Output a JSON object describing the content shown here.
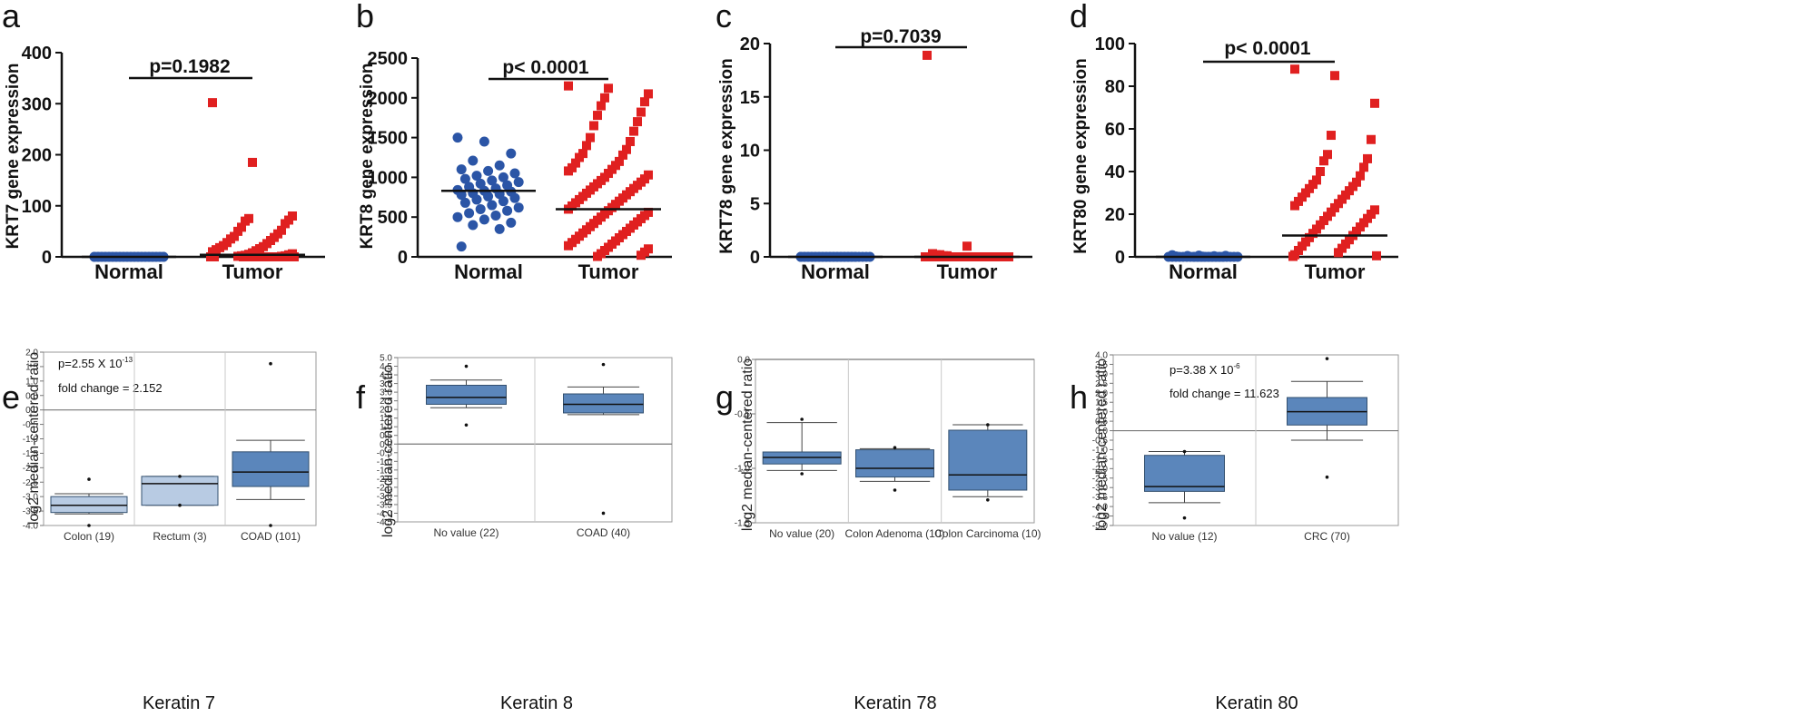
{
  "figure": {
    "scatter_panels": [
      {
        "letter": "a",
        "ylabel": "KRT7 gene expression",
        "pvalue": "p=0.1982"
      },
      {
        "letter": "b",
        "ylabel": "KRT8 gene expression",
        "pvalue": "p< 0.0001"
      },
      {
        "letter": "c",
        "ylabel": "KRT78 gene expression",
        "pvalue": "p=0.7039"
      },
      {
        "letter": "d",
        "ylabel": "KRT80 gene expression",
        "pvalue": "p< 0.0001"
      }
    ],
    "box_panels": [
      {
        "letter": "e",
        "title": "Keratin 7",
        "ylabel": "log2 median-centered ratio",
        "p_prefix": "p=2.55 X 10",
        "p_exp": "-13",
        "fold_change": "fold change = 2.152"
      },
      {
        "letter": "f",
        "title": "Keratin 8",
        "ylabel": "log2 median-centered ratio"
      },
      {
        "letter": "g",
        "title": "Keratin 78",
        "ylabel": "log2 median-centered ratio"
      },
      {
        "letter": "h",
        "title": "Keratin 80",
        "ylabel": "log2 median-centered ratio",
        "p_prefix": "p=3.38 X 10",
        "p_exp": "-6",
        "fold_change": "fold change = 11.623"
      }
    ]
  },
  "chart_data": [
    {
      "type": "scatter",
      "panel": "a",
      "ylabel": "KRT7 gene expression",
      "ylim": [
        0,
        400
      ],
      "yticks": [
        0,
        100,
        200,
        300,
        400
      ],
      "categories": [
        "Normal",
        "Tumor"
      ],
      "normal": {
        "values": [
          0,
          0,
          0,
          0,
          0,
          0,
          0,
          0,
          0,
          0,
          0,
          0,
          0,
          0,
          0,
          0,
          0,
          0,
          0,
          0,
          0,
          0,
          0,
          0,
          0,
          0,
          0,
          0,
          0,
          0,
          0,
          0,
          0,
          0,
          0,
          0,
          0,
          0,
          0,
          0
        ],
        "mean": 0
      },
      "tumor": {
        "values": [
          302,
          185,
          80,
          75,
          72,
          70,
          65,
          58,
          52,
          50,
          45,
          40,
          38,
          35,
          32,
          28,
          26,
          22,
          20,
          18,
          16,
          14,
          12,
          10,
          8,
          6,
          5,
          4,
          3,
          2,
          2,
          1,
          1,
          0,
          0,
          0,
          0,
          0,
          0,
          0,
          0,
          0,
          0,
          0,
          0,
          0,
          0,
          0,
          0,
          0
        ],
        "mean": 4
      },
      "pvalue": "p=0.1982"
    },
    {
      "type": "scatter",
      "panel": "b",
      "ylabel": "KRT8 gene expression",
      "ylim": [
        0,
        2500
      ],
      "yticks": [
        0,
        500,
        1000,
        1500,
        2000,
        2500
      ],
      "categories": [
        "Normal",
        "Tumor"
      ],
      "normal": {
        "values": [
          1500,
          1450,
          1300,
          1210,
          1150,
          1100,
          1080,
          1050,
          1020,
          1000,
          980,
          960,
          940,
          920,
          900,
          880,
          860,
          840,
          830,
          820,
          800,
          790,
          780,
          760,
          740,
          720,
          700,
          680,
          650,
          620,
          600,
          580,
          550,
          520,
          500,
          470,
          430,
          400,
          350,
          130
        ],
        "mean": 830
      },
      "tumor": {
        "values": [
          2150,
          2120,
          2050,
          2000,
          1950,
          1900,
          1820,
          1780,
          1700,
          1650,
          1580,
          1500,
          1450,
          1400,
          1350,
          1300,
          1280,
          1250,
          1200,
          1180,
          1150,
          1120,
          1100,
          1080,
          1050,
          1030,
          1000,
          980,
          960,
          940,
          920,
          900,
          880,
          860,
          840,
          820,
          800,
          780,
          760,
          740,
          720,
          700,
          680,
          660,
          640,
          620,
          600,
          580,
          560,
          540,
          520,
          500,
          480,
          460,
          440,
          420,
          400,
          380,
          360,
          340,
          320,
          300,
          280,
          260,
          240,
          220,
          200,
          180,
          160,
          140,
          120,
          100,
          80,
          60,
          40,
          20,
          5
        ],
        "mean": 600
      },
      "pvalue": "p< 0.0001"
    },
    {
      "type": "scatter",
      "panel": "c",
      "ylabel": "KRT78 gene expression",
      "ylim": [
        0,
        20
      ],
      "yticks": [
        0,
        5,
        10,
        15,
        20
      ],
      "categories": [
        "Normal",
        "Tumor"
      ],
      "normal": {
        "values": [
          0,
          0,
          0,
          0,
          0,
          0,
          0,
          0,
          0,
          0,
          0,
          0,
          0,
          0,
          0,
          0,
          0,
          0,
          0,
          0,
          0,
          0,
          0,
          0,
          0,
          0,
          0,
          0,
          0,
          0,
          0,
          0,
          0,
          0,
          0,
          0
        ],
        "mean": 0
      },
      "tumor": {
        "values": [
          18.9,
          1.0,
          0.3,
          0.2,
          0.2,
          0.1,
          0.1,
          0,
          0,
          0,
          0,
          0,
          0,
          0,
          0,
          0,
          0,
          0,
          0,
          0,
          0,
          0,
          0,
          0,
          0,
          0,
          0,
          0,
          0,
          0,
          0,
          0,
          0,
          0,
          0,
          0,
          0,
          0,
          0,
          0
        ],
        "mean": 0
      },
      "pvalue": "p=0.7039"
    },
    {
      "type": "scatter",
      "panel": "d",
      "ylabel": "KRT80 gene expression",
      "ylim": [
        0,
        100
      ],
      "yticks": [
        0,
        20,
        40,
        60,
        80,
        100
      ],
      "categories": [
        "Normal",
        "Tumor"
      ],
      "normal": {
        "values": [
          0.8,
          0.6,
          0.5,
          0.4,
          0.3,
          0.2,
          0.1,
          0,
          0,
          0,
          0,
          0,
          0,
          0,
          0,
          0,
          0,
          0,
          0,
          0,
          0,
          0,
          0,
          0,
          0,
          0,
          0,
          0,
          0,
          0,
          0,
          0,
          0,
          0,
          0,
          0
        ],
        "mean": 0
      },
      "tumor": {
        "values": [
          88,
          85,
          72,
          57,
          55,
          48,
          46,
          45,
          42,
          40,
          38,
          36,
          35,
          34,
          33,
          32,
          31,
          30,
          29,
          28,
          27,
          26,
          25,
          24,
          23,
          22,
          21,
          20,
          19,
          18,
          17,
          16,
          15,
          14,
          13,
          12,
          11,
          10,
          9,
          8,
          7,
          6,
          5,
          4,
          3,
          2,
          1,
          0.5,
          0.2
        ],
        "mean": 10
      },
      "pvalue": "p< 0.0001"
    },
    {
      "type": "box",
      "panel": "e",
      "title": "Keratin 7",
      "ylabel": "log2 median-centered ratio",
      "ylim": [
        -4.0,
        2.0
      ],
      "yticks": [
        -4.0,
        -3.5,
        -3.0,
        -2.5,
        -2.0,
        -1.5,
        -1.0,
        -0.5,
        0.0,
        0.5,
        1.0,
        1.5,
        2.0
      ],
      "zero_line": 0,
      "groups": [
        {
          "label": "Colon (19)",
          "whisker_low": -3.6,
          "q1": -3.55,
          "median": -3.3,
          "q3": -3.0,
          "whisker_high": -2.9,
          "outliers": [
            -2.4,
            -4.0
          ],
          "shade": "light"
        },
        {
          "label": "Rectum (3)",
          "whisker_low": -3.3,
          "q1": -3.3,
          "median": -2.55,
          "q3": -2.3,
          "whisker_high": -2.3,
          "outliers": [
            -2.3,
            -3.3
          ],
          "shade": "light"
        },
        {
          "label": "COAD (101)",
          "whisker_low": -3.1,
          "q1": -2.65,
          "median": -2.15,
          "q3": -1.45,
          "whisker_high": -1.05,
          "outliers": [
            1.6,
            -4.0
          ],
          "shade": "dark"
        }
      ]
    },
    {
      "type": "box",
      "panel": "f",
      "title": "Keratin 8",
      "ylabel": "log2 median-centered ratio",
      "ylim": [
        -4.5,
        5.0
      ],
      "yticks": [
        -4.5,
        -4.0,
        -3.5,
        -3.0,
        -2.5,
        -2.0,
        -1.5,
        -1.0,
        -0.5,
        0.0,
        0.5,
        1.0,
        1.5,
        2.0,
        2.5,
        3.0,
        3.5,
        4.0,
        4.5,
        5.0
      ],
      "zero_line": 0,
      "groups": [
        {
          "label": "No value (22)",
          "whisker_low": 2.1,
          "q1": 2.3,
          "median": 2.7,
          "q3": 3.4,
          "whisker_high": 3.7,
          "outliers": [
            4.5,
            1.1
          ],
          "shade": "dark"
        },
        {
          "label": "COAD (40)",
          "whisker_low": 1.7,
          "q1": 1.8,
          "median": 2.3,
          "q3": 2.9,
          "whisker_high": 3.3,
          "outliers": [
            4.6,
            -4.0
          ],
          "shade": "dark"
        }
      ]
    },
    {
      "type": "box",
      "panel": "g",
      "title": "Keratin 78",
      "ylabel": "log2 median-centered ratio",
      "ylim": [
        -1.5,
        0.0
      ],
      "yticks": [
        -1.5,
        -1.0,
        -0.5,
        0.0
      ],
      "zero_line": 0,
      "groups": [
        {
          "label": "No value (20)",
          "whisker_low": -1.02,
          "q1": -0.96,
          "median": -0.9,
          "q3": -0.85,
          "whisker_high": -0.58,
          "outliers": [
            -0.55,
            -1.05
          ],
          "shade": "dark"
        },
        {
          "label": "Colon Adenoma (10)",
          "whisker_low": -1.12,
          "q1": -1.08,
          "median": -1.0,
          "q3": -0.83,
          "whisker_high": -0.82,
          "outliers": [
            -0.81,
            -1.2
          ],
          "shade": "dark"
        },
        {
          "label": "Colon Carcinoma (10)",
          "whisker_low": -1.26,
          "q1": -1.2,
          "median": -1.06,
          "q3": -0.65,
          "whisker_high": -0.6,
          "outliers": [
            -0.6,
            -1.29
          ],
          "shade": "dark"
        }
      ]
    },
    {
      "type": "box",
      "panel": "h",
      "title": "Keratin 80",
      "ylabel": "log2 median-centered ratio",
      "ylim": [
        -5.0,
        4.0
      ],
      "yticks": [
        -5.0,
        -4.5,
        -4.0,
        -3.5,
        -3.0,
        -2.5,
        -2.0,
        -1.5,
        -1.0,
        -0.5,
        0.0,
        0.5,
        1.0,
        1.5,
        2.0,
        2.5,
        3.0,
        3.5,
        4.0
      ],
      "zero_line": 0,
      "groups": [
        {
          "label": "No value (12)",
          "whisker_low": -3.8,
          "q1": -3.2,
          "median": -2.95,
          "q3": -1.3,
          "whisker_high": -1.1,
          "outliers": [
            -1.1,
            -4.6
          ],
          "shade": "dark"
        },
        {
          "label": "CRC (70)",
          "whisker_low": -0.5,
          "q1": 0.3,
          "median": 1.0,
          "q3": 1.75,
          "whisker_high": 2.6,
          "outliers": [
            3.8,
            -2.45
          ],
          "shade": "dark"
        }
      ]
    }
  ]
}
